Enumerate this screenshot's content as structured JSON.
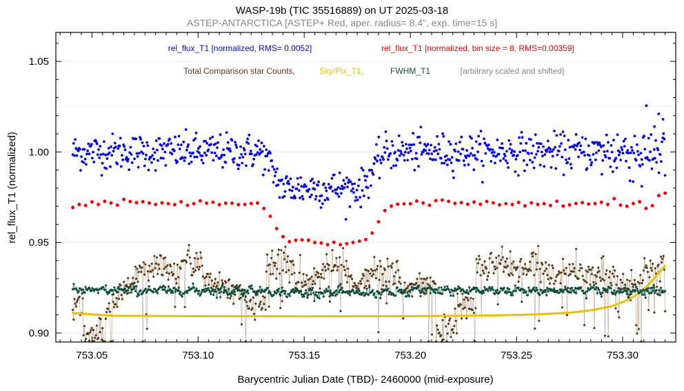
{
  "chart_data": {
    "type": "scatter",
    "title": "WASP-19b (TIC 35516889)  on UT 2025-03-18",
    "subtitle": "ASTEP-ANTARCTICA [ASTEP+ Red, aper. radius= 8.4\", exp. time=15 s]",
    "xlabel": "Barycentric Julian Date (TBD)- 2460000 (mid-exposure)",
    "ylabel": "rel_flux_T1 (normalized)",
    "xlim": [
      753.033,
      753.325
    ],
    "ylim": [
      0.895,
      1.066
    ],
    "x_ticks": [
      753.05,
      753.1,
      753.15,
      753.2,
      753.25,
      753.3
    ],
    "x_tick_labels": [
      "753.05",
      "753.10",
      "753.15",
      "753.20",
      "753.25",
      "753.30"
    ],
    "y_ticks": [
      0.9,
      0.95,
      1.0,
      1.05
    ],
    "y_tick_labels": [
      "0.90",
      "0.95",
      "1.00",
      "1.05"
    ],
    "x_range_data": [
      753.041,
      753.32
    ],
    "transit": {
      "ingress_start": 753.13,
      "ingress_end": 753.14,
      "egress_start": 753.177,
      "egress_end": 753.188,
      "depth": 0.02
    },
    "legend": [
      {
        "text": "rel_flux_T1 [normalized, RMS= 0.0052]",
        "color": "#0000ff"
      },
      {
        "text": "rel_flux_T1 [normalized, bin size = 8, RMS=0.00359]",
        "color": "#ff0000"
      },
      {
        "text": "Total Comparison star Counts,",
        "color": "#5a3a14"
      },
      {
        "text": "Sky/Pix_T1,",
        "color": "#f0c000"
      },
      {
        "text": "FWHM_T1",
        "color": "#0d4f3c"
      },
      {
        "text": "[arbitrary scaled and shifted]",
        "color": "#888888"
      }
    ],
    "series": [
      {
        "name": "rel_flux_T1",
        "color": "#0000ff",
        "baseline": 1.0,
        "rms": 0.0052,
        "tail_points": [
          [
            753.317,
            1.021
          ],
          [
            753.319,
            1.018
          ],
          [
            753.315,
            1.014
          ],
          [
            753.309,
            0.981
          ]
        ]
      },
      {
        "name": "rel_flux_T1 binned",
        "color": "#ff0000",
        "offset": -0.028,
        "bin_size": 8,
        "rms": 0.00359,
        "values": [
          [
            753.041,
            0.9693
          ],
          [
            753.044,
            0.971
          ],
          [
            753.047,
            0.9704
          ],
          [
            753.05,
            0.9724
          ],
          [
            753.053,
            0.971
          ],
          [
            753.056,
            0.9727
          ],
          [
            753.059,
            0.9718
          ],
          [
            753.062,
            0.9706
          ],
          [
            753.065,
            0.9738
          ],
          [
            753.068,
            0.9726
          ],
          [
            753.071,
            0.972
          ],
          [
            753.074,
            0.9725
          ],
          [
            753.077,
            0.9718
          ],
          [
            753.08,
            0.971
          ],
          [
            753.083,
            0.9719
          ],
          [
            753.086,
            0.9714
          ],
          [
            753.089,
            0.9709
          ],
          [
            753.092,
            0.9725
          ],
          [
            753.095,
            0.9705
          ],
          [
            753.098,
            0.9714
          ],
          [
            753.101,
            0.973
          ],
          [
            753.104,
            0.9717
          ],
          [
            753.107,
            0.9722
          ],
          [
            753.11,
            0.9709
          ],
          [
            753.113,
            0.9717
          ],
          [
            753.116,
            0.9717
          ],
          [
            753.119,
            0.9709
          ],
          [
            753.122,
            0.971
          ],
          [
            753.125,
            0.9715
          ],
          [
            753.128,
            0.9718
          ],
          [
            753.131,
            0.9688
          ],
          [
            753.134,
            0.9644
          ],
          [
            753.137,
            0.9577
          ],
          [
            753.14,
            0.9532
          ],
          [
            753.143,
            0.9504
          ],
          [
            753.146,
            0.9512
          ],
          [
            753.149,
            0.9514
          ],
          [
            753.152,
            0.9512
          ],
          [
            753.155,
            0.95
          ],
          [
            753.158,
            0.9497
          ],
          [
            753.161,
            0.9488
          ],
          [
            753.164,
            0.9501
          ],
          [
            753.167,
            0.9488
          ],
          [
            753.17,
            0.9493
          ],
          [
            753.173,
            0.95
          ],
          [
            753.176,
            0.9507
          ],
          [
            753.179,
            0.9516
          ],
          [
            753.182,
            0.9552
          ],
          [
            753.185,
            0.9614
          ],
          [
            753.188,
            0.9676
          ],
          [
            753.191,
            0.9701
          ],
          [
            753.194,
            0.9711
          ],
          [
            753.197,
            0.9713
          ],
          [
            753.2,
            0.9713
          ],
          [
            753.203,
            0.9729
          ],
          [
            753.206,
            0.9718
          ],
          [
            753.209,
            0.9705
          ],
          [
            753.212,
            0.9731
          ],
          [
            753.215,
            0.9734
          ],
          [
            753.218,
            0.9727
          ],
          [
            753.221,
            0.9716
          ],
          [
            753.224,
            0.972
          ],
          [
            753.227,
            0.9711
          ],
          [
            753.23,
            0.9723
          ],
          [
            753.233,
            0.9711
          ],
          [
            753.236,
            0.9726
          ],
          [
            753.239,
            0.9719
          ],
          [
            753.242,
            0.9708
          ],
          [
            753.245,
            0.9714
          ],
          [
            753.248,
            0.971
          ],
          [
            753.251,
            0.9721
          ],
          [
            753.254,
            0.9702
          ],
          [
            753.257,
            0.9719
          ],
          [
            753.26,
            0.971
          ],
          [
            753.263,
            0.9714
          ],
          [
            753.266,
            0.9704
          ],
          [
            753.269,
            0.9728
          ],
          [
            753.272,
            0.9701
          ],
          [
            753.275,
            0.9708
          ],
          [
            753.278,
            0.9715
          ],
          [
            753.281,
            0.972
          ],
          [
            753.284,
            0.9712
          ],
          [
            753.287,
            0.9715
          ],
          [
            753.29,
            0.9722
          ],
          [
            753.293,
            0.971
          ],
          [
            753.296,
            0.9742
          ],
          [
            753.299,
            0.9706
          ],
          [
            753.302,
            0.97
          ],
          [
            753.305,
            0.9715
          ],
          [
            753.308,
            0.9725
          ],
          [
            753.311,
            0.9688
          ],
          [
            753.314,
            0.9703
          ],
          [
            753.317,
            0.9759
          ],
          [
            753.32,
            0.9772
          ]
        ]
      },
      {
        "name": "Total Comparison star Counts",
        "color": "#5a3a14",
        "scaled": true,
        "level_segments": [
          {
            "x0": 753.041,
            "x1": 753.046,
            "y": 0.915
          },
          {
            "x0": 753.046,
            "x1": 753.056,
            "y": 0.9
          },
          {
            "x0": 753.056,
            "x1": 753.062,
            "y": 0.915
          },
          {
            "x0": 753.062,
            "x1": 753.07,
            "y": 0.926
          },
          {
            "x0": 753.07,
            "x1": 753.077,
            "y": 0.935
          },
          {
            "x0": 753.077,
            "x1": 753.086,
            "y": 0.936
          },
          {
            "x0": 753.086,
            "x1": 753.092,
            "y": 0.932
          },
          {
            "x0": 753.092,
            "x1": 753.102,
            "y": 0.94
          },
          {
            "x0": 753.102,
            "x1": 753.112,
            "y": 0.927
          },
          {
            "x0": 753.112,
            "x1": 753.122,
            "y": 0.922
          },
          {
            "x0": 753.122,
            "x1": 753.132,
            "y": 0.917
          },
          {
            "x0": 753.132,
            "x1": 753.145,
            "y": 0.939
          },
          {
            "x0": 753.145,
            "x1": 753.158,
            "y": 0.929
          },
          {
            "x0": 753.158,
            "x1": 753.17,
            "y": 0.937
          },
          {
            "x0": 753.17,
            "x1": 753.182,
            "y": 0.929
          },
          {
            "x0": 753.182,
            "x1": 753.195,
            "y": 0.933
          },
          {
            "x0": 753.195,
            "x1": 753.203,
            "y": 0.925
          },
          {
            "x0": 753.203,
            "x1": 753.212,
            "y": 0.925
          },
          {
            "x0": 753.212,
            "x1": 753.222,
            "y": 0.903
          },
          {
            "x0": 753.222,
            "x1": 753.231,
            "y": 0.915
          },
          {
            "x0": 753.231,
            "x1": 753.246,
            "y": 0.938
          },
          {
            "x0": 753.246,
            "x1": 753.262,
            "y": 0.937
          },
          {
            "x0": 753.262,
            "x1": 753.28,
            "y": 0.933
          },
          {
            "x0": 753.28,
            "x1": 753.298,
            "y": 0.932
          },
          {
            "x0": 753.298,
            "x1": 753.31,
            "y": 0.928
          },
          {
            "x0": 753.31,
            "x1": 753.32,
            "y": 0.936
          }
        ]
      },
      {
        "name": "Sky/Pix_T1",
        "color": "#f0c000",
        "scaled": true,
        "curve": [
          [
            753.041,
            0.911
          ],
          [
            753.06,
            0.9095
          ],
          [
            753.1,
            0.9093
          ],
          [
            753.15,
            0.9092
          ],
          [
            753.2,
            0.9093
          ],
          [
            753.24,
            0.9097
          ],
          [
            753.26,
            0.9103
          ],
          [
            753.275,
            0.9112
          ],
          [
            753.285,
            0.9125
          ],
          [
            753.295,
            0.9148
          ],
          [
            753.303,
            0.9185
          ],
          [
            753.309,
            0.923
          ],
          [
            753.314,
            0.929
          ],
          [
            753.318,
            0.9345
          ],
          [
            753.32,
            0.937
          ]
        ]
      },
      {
        "name": "FWHM_T1",
        "color": "#0d4f3c",
        "scaled": true,
        "baseline": 0.9235
      }
    ]
  }
}
